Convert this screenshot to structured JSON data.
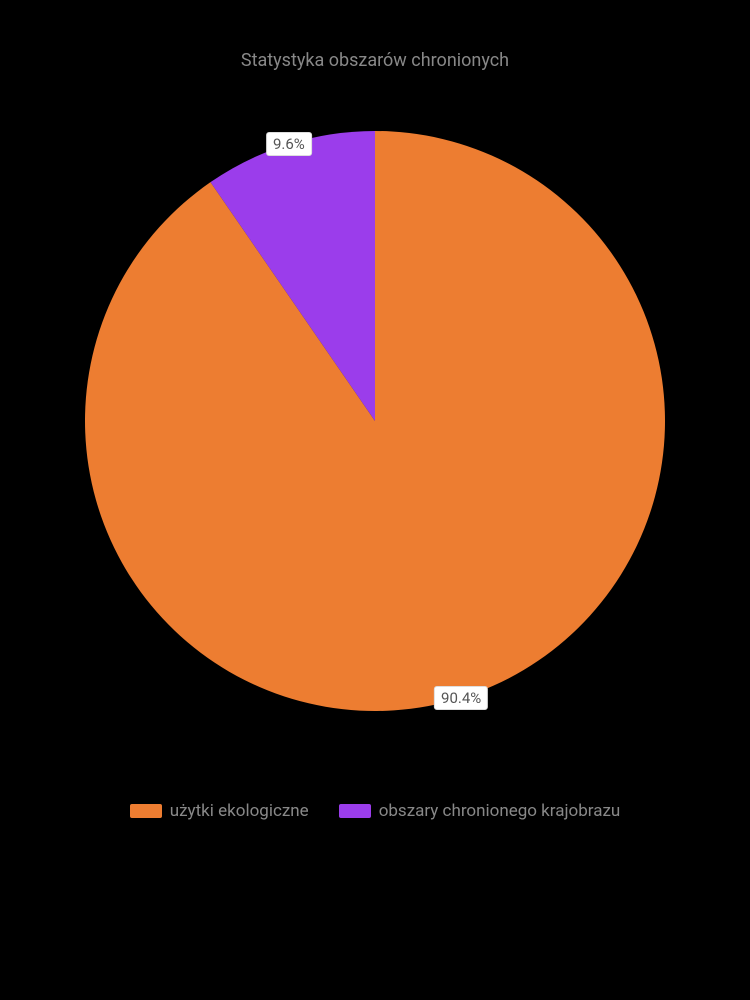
{
  "chart": {
    "type": "pie",
    "title": "Statystyka obszarów chronionych",
    "title_color": "#888888",
    "title_fontsize": 18,
    "background_color": "#000000",
    "slices": [
      {
        "label": "użytki ekologiczne",
        "value": 90.4,
        "display": "90.4%",
        "color": "#ed7d31"
      },
      {
        "label": "obszary chronionego krajobrazu",
        "value": 9.6,
        "display": "9.6%",
        "color": "#9b3deb"
      }
    ],
    "label_bg": "#ffffff",
    "label_text_color": "#555555",
    "legend_text_color": "#888888",
    "legend_fontsize": 17,
    "start_angle_deg": -90
  }
}
